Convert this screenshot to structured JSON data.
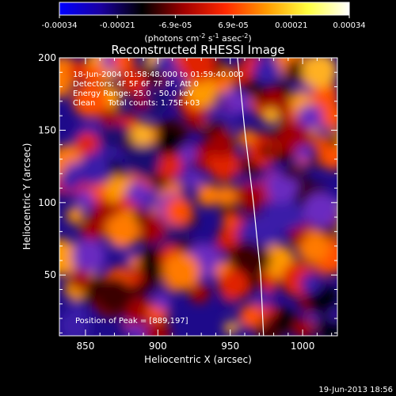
{
  "chart_data": {
    "type": "heatmap",
    "title": "Reconstructed RHESSI Image",
    "xlabel": "Heliocentric X (arcsec)",
    "ylabel": "Heliocentric Y (arcsec)",
    "xlim": [
      832,
      1024
    ],
    "ylim": [
      8,
      200
    ],
    "x_ticks": [
      850,
      900,
      950,
      1000
    ],
    "y_ticks": [
      50,
      100,
      150,
      200
    ],
    "colorbar": {
      "ticks": [
        "-0.00034",
        "-0.00021",
        "-6.9e-05",
        "6.9e-05",
        "0.00021",
        "0.00034"
      ],
      "unit_label": "(photons cm",
      "unit_sup1": "-2",
      "unit_mid": " s",
      "unit_sup2": "-1",
      "unit_mid2": " asec",
      "unit_sup3": "-2",
      "unit_end": ")",
      "colors": [
        "#0000ff",
        "#1a00a0",
        "#000000",
        "#a00000",
        "#ff2800",
        "#ff9a00",
        "#ffff40",
        "#ffffff"
      ]
    },
    "annotations": [
      "18-Jun-2004 01:58:48.000 to 01:59:40.000",
      "Detectors: 4F 5F 6F 7F 8F, Att 0",
      "Energy Range: 25.0 - 50.0 keV",
      "Clean     Total counts: 1.75E+03"
    ],
    "peak_label": "Position of Peak = [889,197]",
    "peak": [
      889,
      197
    ],
    "limb_curve": [
      [
        955,
        200
      ],
      [
        960,
        150
      ],
      [
        966,
        100
      ],
      [
        971,
        50
      ],
      [
        973,
        8
      ]
    ]
  },
  "footer_date": "19-Jun-2013 18:56"
}
